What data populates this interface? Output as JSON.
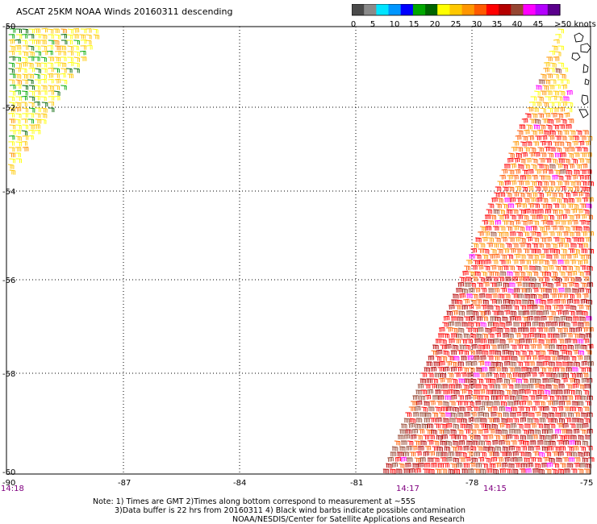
{
  "title": "ASCAT 25KM NOAA Winds 20160311 descending",
  "colorbar": {
    "colors": [
      "#4a4a4a",
      "#8a8a8a",
      "#00e4ff",
      "#0096ff",
      "#0000ff",
      "#00a800",
      "#006400",
      "#ffff00",
      "#ffc800",
      "#ff9600",
      "#ff5a00",
      "#ff0000",
      "#b40000",
      "#964632",
      "#ff00ff",
      "#b400ff",
      "#5a008c"
    ],
    "labels": [
      "0",
      "5",
      "10",
      "15",
      "20",
      "25",
      "30",
      "35",
      "40",
      "45",
      ">50 knots"
    ]
  },
  "axes": {
    "lon_ticks": [
      "-90",
      "-87",
      "-84",
      "-81",
      "-78",
      "-75"
    ],
    "lat_ticks": [
      "-50",
      "-52",
      "-54",
      "-56",
      "-58",
      "-60"
    ]
  },
  "times": [
    "14:18",
    "14:17",
    "14:15"
  ],
  "swaths": [
    {
      "name": "west-swath",
      "dominant_speed_kts": [
        15,
        25
      ]
    },
    {
      "name": "east-swath",
      "dominant_speed_kts": [
        25,
        40
      ]
    }
  ],
  "note": {
    "line1": "Note: 1) Times are GMT 2)Times along bottom correspond to measurement at ~55S",
    "line2": "3)Data buffer is 22 hrs from 20160311 4) Black wind barbs indicate possible contamination",
    "line3": "NOAA/NESDIS/Center for Satellite Applications and Research"
  }
}
